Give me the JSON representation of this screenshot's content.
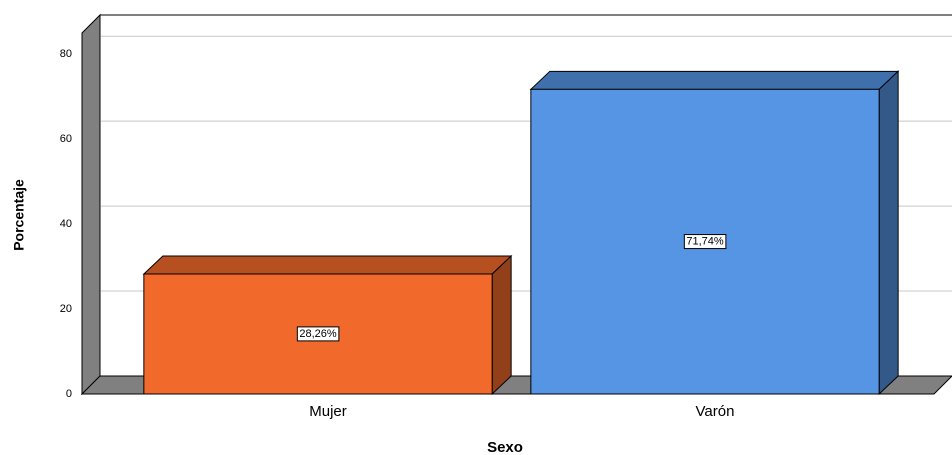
{
  "chart_data": {
    "type": "bar3d",
    "x_label": "Sexo",
    "y_label": "Porcentaje",
    "categories": [
      "Mujer",
      "Varón"
    ],
    "values": [
      28.26,
      71.74
    ],
    "value_labels": [
      "28,26%",
      "71,74%"
    ],
    "colors": [
      "#f26a2b",
      "#5595e4"
    ],
    "ylim": [
      0,
      85
    ],
    "yticks": [
      0,
      20,
      40,
      60,
      80
    ],
    "grid": true
  }
}
